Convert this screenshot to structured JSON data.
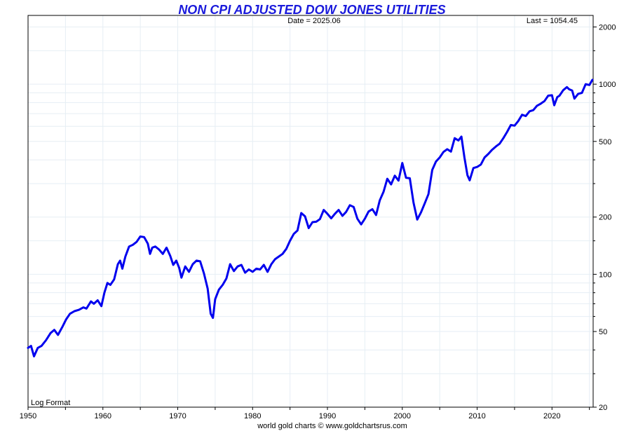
{
  "chart_data": {
    "type": "line",
    "title": "NON CPI ADJUSTED DOW JONES UTILITIES",
    "date_label": "Date = 2025.06",
    "last_label": "Last = 1054.45",
    "log_label": "Log Format",
    "footer": "world gold charts © www.goldchartsrus.com",
    "scale": "log",
    "xlim": [
      1950,
      2025.5
    ],
    "ylim": [
      20,
      2300
    ],
    "x_ticks": [
      "1950",
      "1960",
      "1970",
      "1980",
      "1990",
      "2000",
      "2010",
      "2020"
    ],
    "y_ticks": [
      "20",
      "50",
      "100",
      "200",
      "500",
      "1000",
      "2000"
    ],
    "grid": true,
    "colors": {
      "title": "#1a1adb",
      "line": "#0000ee",
      "grid": "#e6eef4",
      "frame": "#000000"
    },
    "series": [
      {
        "x": [
          1950.0,
          1950.4,
          1950.8,
          1951.3,
          1951.8,
          1952.4,
          1953.0,
          1953.5,
          1954.0,
          1954.6,
          1955.1,
          1955.6,
          1956.2,
          1956.8,
          1957.4,
          1957.8,
          1958.4,
          1958.8,
          1959.3,
          1959.8,
          1960.2,
          1960.6,
          1961.0,
          1961.5,
          1962.0,
          1962.3,
          1962.6,
          1963.0,
          1963.5,
          1964.0,
          1964.5,
          1965.0,
          1965.5,
          1966.0,
          1966.3,
          1966.6,
          1967.0,
          1967.5,
          1968.0,
          1968.5,
          1969.0,
          1969.4,
          1969.8,
          1970.2,
          1970.5,
          1971.0,
          1971.5,
          1972.0,
          1972.5,
          1973.0,
          1973.5,
          1974.0,
          1974.4,
          1974.7,
          1975.0,
          1975.5,
          1976.0,
          1976.5,
          1977.0,
          1977.5,
          1978.0,
          1978.5,
          1979.0,
          1979.5,
          1980.0,
          1980.5,
          1981.0,
          1981.5,
          1982.0,
          1982.5,
          1983.0,
          1983.5,
          1984.0,
          1984.5,
          1985.0,
          1985.5,
          1986.0,
          1986.5,
          1987.0,
          1987.5,
          1988.0,
          1988.5,
          1989.0,
          1989.5,
          1990.0,
          1990.5,
          1991.0,
          1991.5,
          1992.0,
          1992.5,
          1993.0,
          1993.5,
          1994.0,
          1994.5,
          1995.0,
          1995.5,
          1996.0,
          1996.5,
          1997.0,
          1997.5,
          1998.0,
          1998.5,
          1999.0,
          1999.5,
          2000.0,
          2000.5,
          2001.0,
          2001.5,
          2002.0,
          2002.5,
          2003.0,
          2003.5,
          2004.0,
          2004.5,
          2005.0,
          2005.5,
          2006.0,
          2006.5,
          2007.0,
          2007.5,
          2007.9,
          2008.3,
          2008.7,
          2009.0,
          2009.5,
          2010.0,
          2010.5,
          2011.0,
          2011.5,
          2012.0,
          2012.5,
          2013.0,
          2013.5,
          2014.0,
          2014.5,
          2015.0,
          2015.5,
          2016.0,
          2016.5,
          2017.0,
          2017.5,
          2018.0,
          2018.5,
          2019.0,
          2019.5,
          2020.0,
          2020.3,
          2020.7,
          2021.0,
          2021.5,
          2022.0,
          2022.3,
          2022.7,
          2023.0,
          2023.5,
          2024.0,
          2024.5,
          2025.0,
          2025.4
        ],
        "values": [
          41,
          42,
          37,
          41,
          42,
          45,
          49,
          51,
          48,
          53,
          58,
          62,
          64,
          65,
          67,
          66,
          72,
          70,
          73,
          68,
          80,
          90,
          88,
          94,
          113,
          118,
          107,
          124,
          140,
          143,
          148,
          158,
          157,
          145,
          128,
          138,
          140,
          135,
          128,
          138,
          125,
          112,
          118,
          108,
          96,
          110,
          103,
          113,
          118,
          117,
          101,
          84,
          62,
          59,
          74,
          83,
          88,
          95,
          113,
          104,
          110,
          112,
          102,
          106,
          103,
          107,
          106,
          112,
          103,
          113,
          120,
          124,
          128,
          136,
          150,
          163,
          170,
          210,
          202,
          175,
          188,
          189,
          195,
          218,
          208,
          197,
          208,
          218,
          203,
          213,
          231,
          226,
          196,
          183,
          196,
          214,
          220,
          205,
          245,
          272,
          318,
          297,
          330,
          311,
          385,
          322,
          320,
          238,
          194,
          212,
          236,
          264,
          354,
          392,
          412,
          440,
          455,
          442,
          520,
          506,
          530,
          412,
          332,
          312,
          362,
          367,
          378,
          412,
          430,
          452,
          470,
          486,
          520,
          560,
          610,
          605,
          640,
          690,
          680,
          720,
          730,
          770,
          790,
          815,
          870,
          875,
          775,
          855,
          870,
          930,
          965,
          940,
          925,
          840,
          890,
          900,
          1000,
          990,
          1054
        ]
      }
    ]
  }
}
